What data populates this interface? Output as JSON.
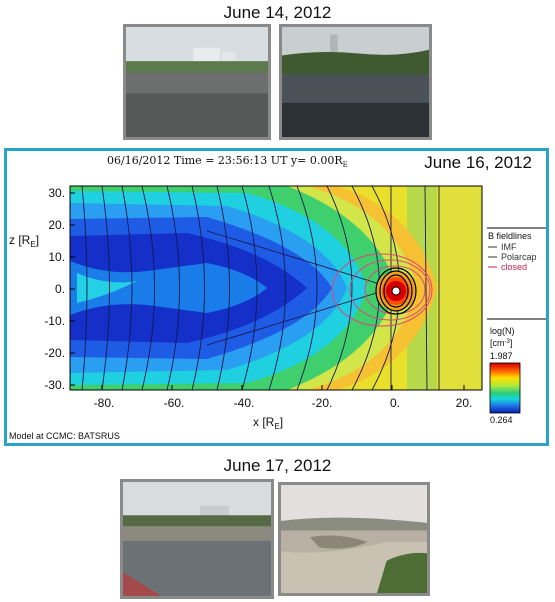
{
  "top": {
    "date": "June 14, 2012"
  },
  "panel": {
    "header_prefix": "06/16/2012 Time = 23:56:13 UT y= 0.00R",
    "header_sub": "E",
    "date": "June 16, 2012",
    "footer": "Model at CCMC: BATSRUS",
    "y_axis_label": "z [R",
    "x_axis_label": "x [R",
    "axis_sub": "E",
    "y_ticks": [
      "30.",
      "20.",
      "10.",
      "0.",
      "-10.",
      "-20.",
      "-30."
    ],
    "x_ticks": [
      "-80.",
      "-60.",
      "-40.",
      "-20.",
      "0.",
      "20."
    ],
    "legend": {
      "title": "B fieldlines",
      "items": [
        {
          "label": "IMF",
          "color": "#333333"
        },
        {
          "label": "Polarcap",
          "color": "#333333"
        },
        {
          "label": "closed",
          "color": "#cc2244"
        }
      ]
    },
    "colorbar": {
      "title": "log(N)",
      "unit": "[cm",
      "unit_sup": "-3",
      "max": "1.987",
      "min": "0.264"
    }
  },
  "bottom": {
    "date": "June 17, 2012"
  }
}
